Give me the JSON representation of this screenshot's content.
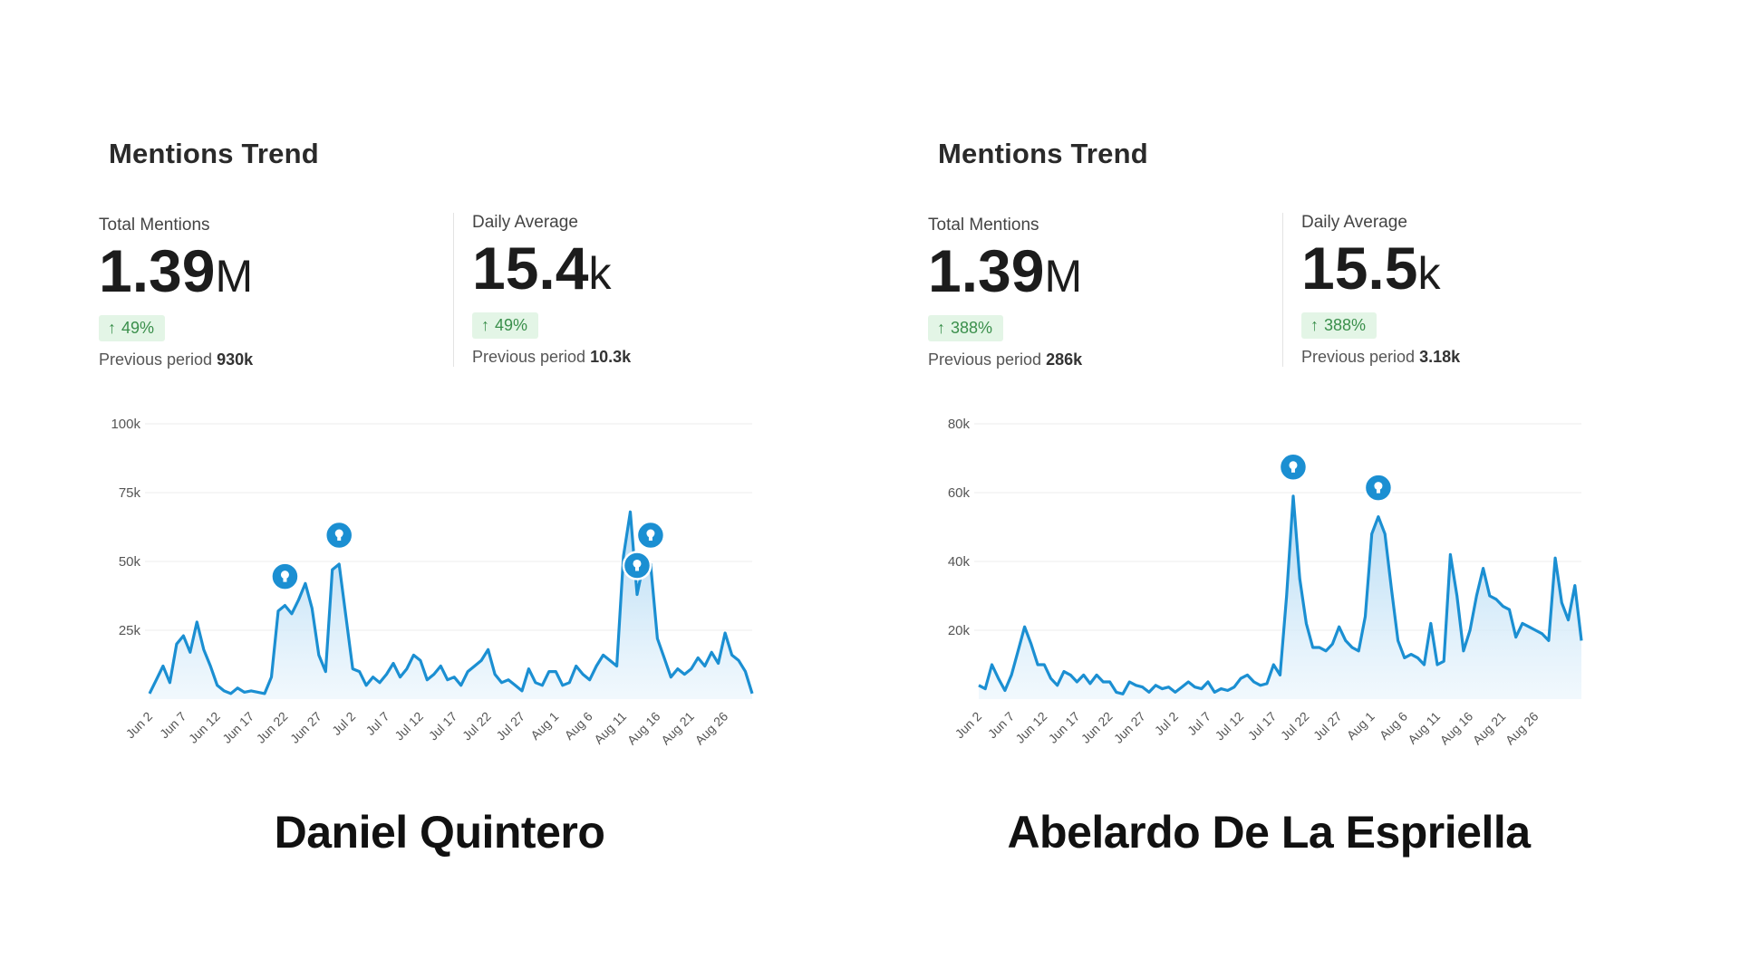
{
  "panels": [
    {
      "title": "Mentions Trend",
      "total_label": "Total Mentions",
      "total_value": "1.39",
      "total_unit": "M",
      "total_change": "49%",
      "total_prev_label": "Previous period",
      "total_prev_value": "930k",
      "avg_label": "Daily Average",
      "avg_value": "15.4",
      "avg_unit": "k",
      "avg_change": "49%",
      "avg_prev_label": "Previous period",
      "avg_prev_value": "10.3k",
      "person": "Daniel Quintero"
    },
    {
      "title": "Mentions Trend",
      "total_label": "Total Mentions",
      "total_value": "1.39",
      "total_unit": "M",
      "total_change": "388%",
      "total_prev_label": "Previous period",
      "total_prev_value": "286k",
      "avg_label": "Daily Average",
      "avg_value": "15.5",
      "avg_unit": "k",
      "avg_change": "388%",
      "avg_prev_label": "Previous period",
      "avg_prev_value": "3.18k",
      "person": "Abelardo De La Espriella"
    }
  ],
  "colors": {
    "line": "#1b8fd2",
    "area": "#d7ecf9",
    "marker": "#1b8fd2",
    "grid": "#eeeeee",
    "badge_bg": "#e3f5e6",
    "badge_text": "#3a8f4b"
  },
  "chart_data": [
    {
      "type": "area",
      "ylim": [
        0,
        100000
      ],
      "yticks": [
        25000,
        50000,
        75000,
        100000
      ],
      "ytick_labels": [
        "25k",
        "50k",
        "75k",
        "100k"
      ],
      "xtick_labels": [
        "Jun 2",
        "Jun 7",
        "Jun 12",
        "Jun 17",
        "Jun 22",
        "Jun 27",
        "Jul 2",
        "Jul 7",
        "Jul 12",
        "Jul 17",
        "Jul 22",
        "Jul 27",
        "Aug 1",
        "Aug 6",
        "Aug 11",
        "Aug 16",
        "Aug 21",
        "Aug 26"
      ],
      "series": [
        {
          "values": [
            2000,
            7000,
            12000,
            6000,
            20000,
            23000,
            17000,
            28000,
            18000,
            12000,
            5000,
            3000,
            2000,
            4000,
            2500,
            3000,
            2500,
            2000,
            8000,
            32000,
            34000,
            31000,
            36000,
            42000,
            33000,
            16000,
            10000,
            47000,
            49000,
            30000,
            11000,
            10000,
            5000,
            8000,
            6000,
            9000,
            13000,
            8000,
            11000,
            16000,
            14000,
            7000,
            9000,
            12000,
            7000,
            8000,
            5000,
            10000,
            12000,
            14000,
            18000,
            9000,
            6000,
            7000,
            5000,
            3000,
            11000,
            6000,
            5000,
            10000,
            10000,
            5000,
            6000,
            12000,
            9000,
            7000,
            12000,
            16000,
            14000,
            12000,
            52000,
            68000,
            38000,
            50000,
            49000,
            22000,
            15000,
            8000,
            11000,
            9000,
            11000,
            15000,
            12000,
            17000,
            13000,
            24000,
            16000,
            14000,
            10000,
            2000
          ]
        }
      ],
      "markers_at_index": [
        20,
        28,
        72,
        74
      ]
    },
    {
      "type": "area",
      "ylim": [
        0,
        80000
      ],
      "yticks": [
        20000,
        40000,
        60000,
        80000
      ],
      "ytick_labels": [
        "20k",
        "40k",
        "60k",
        "80k"
      ],
      "xtick_labels": [
        "Jun 2",
        "Jun 7",
        "Jun 12",
        "Jun 17",
        "Jun 22",
        "Jun 27",
        "Jul 2",
        "Jul 7",
        "Jul 12",
        "Jul 17",
        "Jul 22",
        "Jul 27",
        "Aug 1",
        "Aug 6",
        "Aug 11",
        "Aug 16",
        "Aug 21",
        "Aug 26"
      ],
      "series": [
        {
          "values": [
            4000,
            3000,
            10000,
            6000,
            2500,
            7000,
            14000,
            21000,
            16000,
            10000,
            10000,
            6000,
            4000,
            8000,
            7000,
            5000,
            7000,
            4500,
            7000,
            5000,
            5000,
            2000,
            1500,
            5000,
            4000,
            3500,
            2000,
            4000,
            3000,
            3500,
            2000,
            3500,
            5000,
            3500,
            3000,
            5000,
            2000,
            3000,
            2500,
            3500,
            6000,
            7000,
            5000,
            4000,
            4500,
            10000,
            7000,
            30000,
            59000,
            35000,
            22000,
            15000,
            15000,
            14000,
            16000,
            21000,
            17000,
            15000,
            14000,
            24000,
            48000,
            53000,
            48000,
            32000,
            17000,
            12000,
            13000,
            12000,
            10000,
            22000,
            10000,
            11000,
            42000,
            30000,
            14000,
            20000,
            30000,
            38000,
            30000,
            29000,
            27000,
            26000,
            18000,
            22000,
            21000,
            20000,
            19000,
            17000,
            41000,
            28000,
            23000,
            33000,
            17000
          ]
        }
      ],
      "markers_at_index": [
        48,
        61
      ]
    }
  ]
}
